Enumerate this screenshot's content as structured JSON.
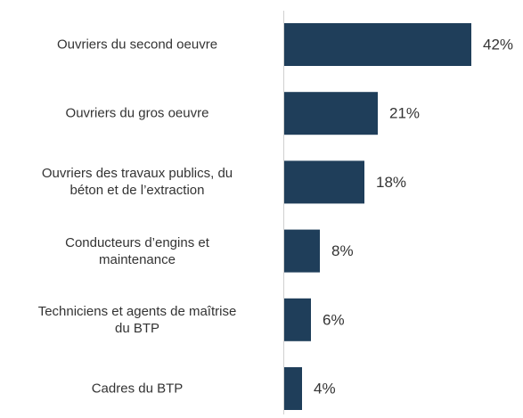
{
  "chart_data": {
    "type": "bar",
    "orientation": "horizontal",
    "categories": [
      "Ouvriers du second oeuvre",
      "Ouvriers du gros oeuvre",
      "Ouvriers des travaux publics, du\nbéton et de l’extraction",
      "Conducteurs d’engins et\nmaintenance",
      "Techniciens et agents de maîtrise\ndu BTP",
      "Cadres du BTP"
    ],
    "values": [
      42,
      21,
      18,
      8,
      6,
      4
    ],
    "value_labels": [
      "42%",
      "21%",
      "18%",
      "8%",
      "6%",
      "4%"
    ],
    "color": "#1f3e5a"
  }
}
